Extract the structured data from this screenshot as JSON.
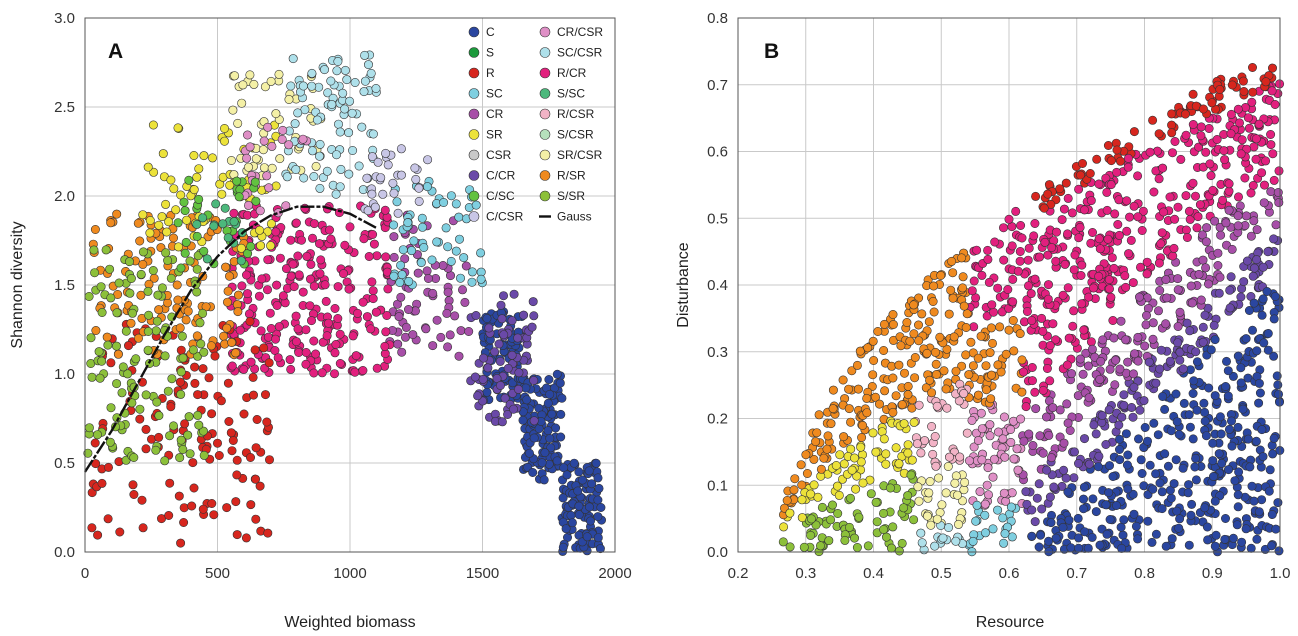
{
  "colors": {
    "C": "#2a46a0",
    "S": "#1c9a3c",
    "R": "#d7261e",
    "SC": "#7fcfe0",
    "CR": "#a74fa8",
    "SR": "#ece23a",
    "CSR": "#c9c9c9",
    "C/CR": "#6a49a8",
    "C/SC": "#62c240",
    "C/CSR": "#c8c6e6",
    "CR/CSR": "#df8fc6",
    "SC/CSR": "#aee0ea",
    "R/CR": "#e2207e",
    "S/SC": "#4cb87c",
    "R/CSR": "#f2b3c6",
    "S/CSR": "#b6e0bc",
    "SR/CSR": "#f4f0a6",
    "R/SR": "#ef8a1f",
    "S/SR": "#8cc03a",
    "Gauss": "#111111"
  },
  "chart_data": [
    {
      "type": "scatter",
      "panel_label": "A",
      "title": "",
      "xlabel": "Weighted biomass",
      "ylabel": "Shannon diversity",
      "xlim": [
        0,
        2000
      ],
      "ylim": [
        0,
        3.0
      ],
      "x_ticks": [
        "0",
        "500",
        "1000",
        "1500",
        "2000"
      ],
      "y_ticks": [
        "0.0",
        "0.5",
        "1.0",
        "1.5",
        "2.0",
        "2.5",
        "3.0"
      ],
      "grid": true,
      "legend_position": "top-right",
      "legend_columns": [
        [
          "C",
          "S",
          "R",
          "SC",
          "CR",
          "SR",
          "CSR",
          "C/CR",
          "C/SC",
          "C/CSR"
        ],
        [
          "CR/CSR",
          "SC/CSR",
          "R/CR",
          "S/SC",
          "R/CSR",
          "S/CSR",
          "SR/CSR",
          "R/SR",
          "S/SR",
          "Gauss"
        ]
      ],
      "gauss_curve": {
        "x": [
          0,
          100,
          200,
          300,
          400,
          500,
          600,
          700,
          800,
          900,
          1000,
          1100
        ],
        "y": [
          0.45,
          0.68,
          0.95,
          1.22,
          1.47,
          1.66,
          1.8,
          1.89,
          1.94,
          1.94,
          1.9,
          1.82
        ]
      },
      "series": [
        {
          "name": "C",
          "clusters": [
            {
              "x": [
                1500,
                1650
              ],
              "y": [
                0.85,
                1.35
              ],
              "n": 90
            },
            {
              "x": [
                1650,
                1800
              ],
              "y": [
                0.4,
                1.0
              ],
              "n": 120
            },
            {
              "x": [
                1800,
                1950
              ],
              "y": [
                0.0,
                0.5
              ],
              "n": 110
            }
          ]
        },
        {
          "name": "C/CR",
          "clusters": [
            {
              "x": [
                1450,
                1700
              ],
              "y": [
                0.7,
                1.45
              ],
              "n": 70
            }
          ]
        },
        {
          "name": "CR",
          "clusters": [
            {
              "x": [
                1150,
                1450
              ],
              "y": [
                1.1,
                1.9
              ],
              "n": 65
            }
          ]
        },
        {
          "name": "R/CR",
          "clusters": [
            {
              "x": [
                550,
                1150
              ],
              "y": [
                1.0,
                1.95
              ],
              "n": 280
            }
          ]
        },
        {
          "name": "R",
          "clusters": [
            {
              "x": [
                20,
                700
              ],
              "y": [
                0.05,
                1.3
              ],
              "n": 140
            }
          ]
        },
        {
          "name": "R/SR",
          "clusters": [
            {
              "x": [
                30,
                600
              ],
              "y": [
                1.1,
                1.9
              ],
              "n": 130
            }
          ]
        },
        {
          "name": "S/SR",
          "clusters": [
            {
              "x": [
                0,
                450
              ],
              "y": [
                0.5,
                1.7
              ],
              "n": 130
            }
          ]
        },
        {
          "name": "SR",
          "clusters": [
            {
              "x": [
                200,
                750
              ],
              "y": [
                1.7,
                2.4
              ],
              "n": 70
            }
          ]
        },
        {
          "name": "SR/CSR",
          "clusters": [
            {
              "x": [
                550,
                900
              ],
              "y": [
                2.1,
                2.7
              ],
              "n": 50
            }
          ]
        },
        {
          "name": "SC/CSR",
          "clusters": [
            {
              "x": [
                750,
                1100
              ],
              "y": [
                2.0,
                2.8
              ],
              "n": 90
            }
          ]
        },
        {
          "name": "SC",
          "clusters": [
            {
              "x": [
                1150,
                1500
              ],
              "y": [
                1.5,
                2.1
              ],
              "n": 60
            }
          ]
        },
        {
          "name": "C/CSR",
          "clusters": [
            {
              "x": [
                1050,
                1300
              ],
              "y": [
                1.9,
                2.3
              ],
              "n": 30
            }
          ]
        },
        {
          "name": "CR/CSR",
          "clusters": [
            {
              "x": [
                600,
                850
              ],
              "y": [
                1.9,
                2.4
              ],
              "n": 25
            }
          ]
        },
        {
          "name": "C/SC",
          "clusters": [
            {
              "x": [
                350,
                650
              ],
              "y": [
                1.5,
                2.1
              ],
              "n": 30
            }
          ]
        },
        {
          "name": "S/SC",
          "clusters": [
            {
              "x": [
                400,
                600
              ],
              "y": [
                1.6,
                2.0
              ],
              "n": 15
            }
          ]
        }
      ]
    },
    {
      "type": "scatter",
      "panel_label": "B",
      "title": "",
      "xlabel": "Resource",
      "ylabel": "Disturbance",
      "xlim": [
        0.2,
        1.0
      ],
      "ylim": [
        0,
        0.8
      ],
      "x_ticks": [
        "0.2",
        "0.3",
        "0.4",
        "0.5",
        "0.6",
        "0.7",
        "0.8",
        "0.9",
        "1.0"
      ],
      "y_ticks": [
        "0.0",
        "0.1",
        "0.2",
        "0.3",
        "0.4",
        "0.5",
        "0.6",
        "0.7",
        "0.8"
      ],
      "grid": true,
      "boundary": "disturbance <= 0.76 * sqrt((resource - 0.26) / 0.74)",
      "regions": [
        {
          "name": "C",
          "x": [
            0.6,
            1.0
          ],
          "y": [
            0.0,
            0.42
          ],
          "condition": "y < 1.05 * (x - 0.6)",
          "n": 520
        },
        {
          "name": "C/CR",
          "x": [
            0.7,
            1.0
          ],
          "y": [
            0.1,
            0.55
          ],
          "condition": "band above C",
          "n": 120
        },
        {
          "name": "CR",
          "x": [
            0.6,
            1.0
          ],
          "y": [
            0.1,
            0.6
          ],
          "condition": "band",
          "n": 160
        },
        {
          "name": "R/CR",
          "x": [
            0.55,
            1.0
          ],
          "y": [
            0.3,
            0.75
          ],
          "condition": "upper band",
          "n": 330
        },
        {
          "name": "R",
          "x": [
            0.6,
            1.0
          ],
          "y": [
            0.5,
            0.77
          ],
          "condition": "near boundary",
          "n": 80
        },
        {
          "name": "R/SR",
          "x": [
            0.35,
            0.65
          ],
          "y": [
            0.15,
            0.55
          ],
          "condition": "left upper band",
          "n": 220
        },
        {
          "name": "SR",
          "x": [
            0.35,
            0.5
          ],
          "y": [
            0.05,
            0.3
          ],
          "condition": "left middle",
          "n": 90
        },
        {
          "name": "S/SR",
          "x": [
            0.27,
            0.45
          ],
          "y": [
            0.0,
            0.16
          ],
          "condition": "left lower",
          "n": 110
        },
        {
          "name": "SR/CSR",
          "x": [
            0.42,
            0.52
          ],
          "y": [
            0.02,
            0.18
          ],
          "condition": "",
          "n": 40
        },
        {
          "name": "SC/CSR",
          "x": [
            0.45,
            0.55
          ],
          "y": [
            0.0,
            0.08
          ],
          "condition": "",
          "n": 25
        },
        {
          "name": "SC",
          "x": [
            0.5,
            0.62
          ],
          "y": [
            0.0,
            0.08
          ],
          "condition": "",
          "n": 35
        },
        {
          "name": "R/CSR",
          "x": [
            0.5,
            0.62
          ],
          "y": [
            0.1,
            0.35
          ],
          "condition": "",
          "n": 60
        },
        {
          "name": "CR/CSR",
          "x": [
            0.55,
            0.65
          ],
          "y": [
            0.05,
            0.2
          ],
          "condition": "",
          "n": 30
        }
      ]
    }
  ]
}
